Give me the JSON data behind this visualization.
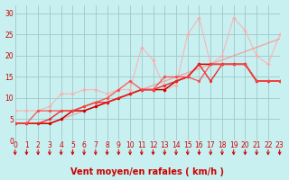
{
  "bg_color": "#c8f0f0",
  "grid_color": "#a0c8c8",
  "xlabel": "Vent moyen/en rafales ( km/h )",
  "xlim": [
    0,
    23
  ],
  "ylim": [
    0,
    32
  ],
  "yticks": [
    0,
    5,
    10,
    15,
    20,
    25,
    30
  ],
  "xticks": [
    0,
    1,
    2,
    3,
    4,
    5,
    6,
    7,
    8,
    9,
    10,
    11,
    12,
    13,
    14,
    15,
    16,
    17,
    18,
    19,
    20,
    21,
    22,
    23
  ],
  "lines": [
    {
      "x": [
        0,
        1,
        2,
        3,
        4,
        5,
        6,
        7,
        8,
        9,
        10,
        11,
        12,
        13,
        14,
        15,
        16,
        17,
        18,
        19,
        20,
        21,
        22,
        23
      ],
      "y": [
        4,
        4,
        4,
        4,
        5,
        6,
        7,
        8,
        9,
        10,
        11,
        12,
        13,
        14,
        15,
        16,
        17,
        18,
        19,
        20,
        21,
        22,
        23,
        24
      ],
      "color": "#ff8888",
      "lw": 1.0,
      "marker": null,
      "ms": 0,
      "alpha": 0.7
    },
    {
      "x": [
        0,
        1,
        2,
        3,
        4,
        5,
        6,
        7,
        8,
        9,
        10,
        11,
        12,
        13,
        14,
        15,
        16,
        17,
        18,
        19,
        20,
        21,
        22,
        23
      ],
      "y": [
        7,
        7,
        7,
        8,
        11,
        11,
        12,
        12,
        11,
        12,
        12,
        22,
        19,
        12,
        13,
        25,
        29,
        18,
        20,
        29,
        26,
        20,
        18,
        25
      ],
      "color": "#ffaaaa",
      "lw": 0.9,
      "marker": "D",
      "ms": 2.0,
      "alpha": 0.75
    },
    {
      "x": [
        0,
        1,
        2,
        3,
        4,
        5,
        6,
        7,
        8,
        9,
        10,
        11,
        12,
        13,
        14,
        15,
        16,
        17,
        18,
        19,
        20,
        21,
        22,
        23
      ],
      "y": [
        4,
        4,
        4,
        4,
        5,
        7,
        7,
        8,
        9,
        10,
        11,
        12,
        12,
        12,
        14,
        15,
        18,
        18,
        18,
        18,
        18,
        14,
        14,
        14
      ],
      "color": "#cc0000",
      "lw": 1.1,
      "marker": "o",
      "ms": 2.2,
      "alpha": 1.0
    },
    {
      "x": [
        0,
        1,
        2,
        3,
        4,
        5,
        6,
        7,
        8,
        9,
        10,
        11,
        12,
        13,
        14,
        15,
        16,
        17,
        18,
        19,
        20,
        21,
        22,
        23
      ],
      "y": [
        4,
        4,
        4,
        5,
        7,
        7,
        8,
        9,
        9,
        10,
        11,
        12,
        12,
        13,
        14,
        15,
        18,
        14,
        18,
        18,
        18,
        14,
        14,
        14
      ],
      "color": "#ee2222",
      "lw": 1.0,
      "marker": "o",
      "ms": 2.0,
      "alpha": 0.95
    },
    {
      "x": [
        0,
        1,
        2,
        3,
        4,
        5,
        6,
        7,
        8,
        9,
        10,
        11,
        12,
        13,
        14,
        15,
        16,
        17,
        18,
        19,
        20,
        21,
        22,
        23
      ],
      "y": [
        4,
        4,
        7,
        7,
        7,
        7,
        8,
        9,
        10,
        12,
        14,
        12,
        12,
        15,
        15,
        15,
        14,
        18,
        18,
        18,
        18,
        14,
        14,
        14
      ],
      "color": "#ff4444",
      "lw": 1.0,
      "marker": "o",
      "ms": 2.0,
      "alpha": 0.85
    }
  ],
  "arrow_color": "#cc0000",
  "xlabel_color": "#cc0000",
  "tick_color": "#cc0000",
  "label_fontsize": 7,
  "tick_fontsize": 5.5
}
